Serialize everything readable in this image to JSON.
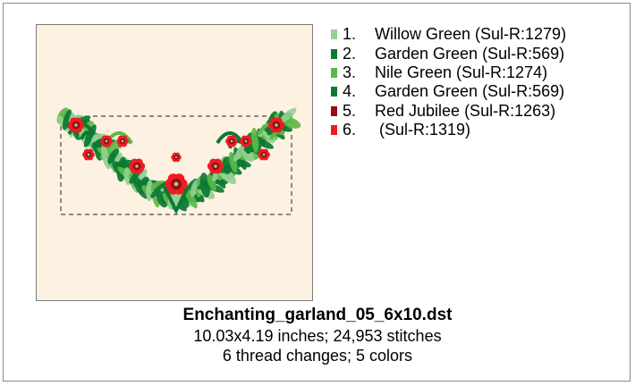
{
  "legend": {
    "items": [
      {
        "number": "1.",
        "name": "Willow Green (Sul-R:1279)",
        "color": "#94d094"
      },
      {
        "number": "2.",
        "name": "Garden Green (Sul-R:569)",
        "color": "#0a7a32"
      },
      {
        "number": "3.",
        "name": "Nile Green (Sul-R:1274)",
        "color": "#5cb848"
      },
      {
        "number": "4.",
        "name": "Garden Green (Sul-R:569)",
        "color": "#0a7a32"
      },
      {
        "number": "5.",
        "name": "Red Jubilee (Sul-R:1263)",
        "color": "#9a0c12"
      },
      {
        "number": "6.",
        "name": " (Sul-R:1319)",
        "color": "#ee1c24"
      }
    ]
  },
  "design": {
    "filename": "Enchanting_garland_05_6x10.dst",
    "dimensions_line": "10.03x4.19 inches; 24,953 stitches",
    "changes_line": "6 thread changes; 5 colors",
    "background_color": "#fdf1e2"
  }
}
